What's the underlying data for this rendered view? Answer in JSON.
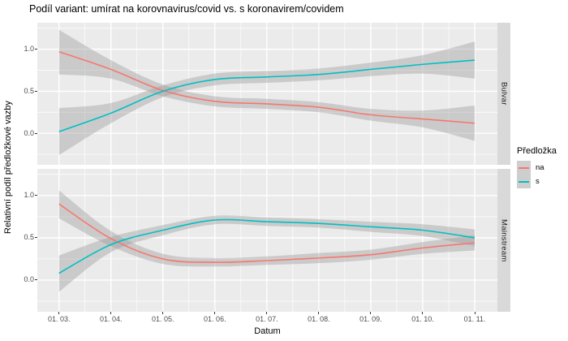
{
  "title": "Podíl variant: umírat na korovnavirus/covid vs. s koronavirem/covidem",
  "axes": {
    "x_title": "Datum",
    "y_title": "Relativní podíl předložkové vazby",
    "x_tick_labels": [
      "01. 03.",
      "01. 04.",
      "01. 05.",
      "01. 06.",
      "01. 07.",
      "01. 08.",
      "01. 09.",
      "01. 10.",
      "01. 11."
    ],
    "y_tick_labels": [
      "1.0",
      "0.5",
      "0.0"
    ],
    "y_tick_values": [
      1.0,
      0.5,
      0.0
    ]
  },
  "legend": {
    "title": "Předložka",
    "items": [
      {
        "label": "na",
        "color": "#F8766D"
      },
      {
        "label": "s",
        "color": "#00BFC4"
      }
    ]
  },
  "colors": {
    "panel_background": "#EBEBEB",
    "strip_background": "#D9D9D9",
    "grid": "#FFFFFF",
    "ribbon": "#999999",
    "ribbon_opacity": 0.4,
    "na_line": "#F8766D",
    "s_line": "#00BFC4",
    "tick": "#333333",
    "tick_text": "#4D4D4D",
    "legend_key_background": "#CECECE"
  },
  "chart_data": {
    "type": "line",
    "x": [
      "01. 03.",
      "01. 04.",
      "01. 05.",
      "01. 06.",
      "01. 07.",
      "01. 08.",
      "01. 09.",
      "01. 10.",
      "01. 11."
    ],
    "ylim": [
      -0.375,
      1.315
    ],
    "y_major_gridlines": [
      0.0,
      0.5,
      1.0
    ],
    "y_minor_gridlines": [
      -0.25,
      0.25,
      0.75,
      1.25
    ],
    "grid": "on",
    "legend_position": "right",
    "facets": [
      {
        "name": "Bulvar",
        "series": [
          {
            "name": "na",
            "color": "#F8766D",
            "values": [
              0.97,
              0.76,
              0.51,
              0.38,
              0.35,
              0.31,
              0.22,
              0.17,
              0.12
            ],
            "upper": [
              1.23,
              0.87,
              0.58,
              0.44,
              0.41,
              0.37,
              0.29,
              0.27,
              0.33
            ],
            "lower": [
              0.7,
              0.65,
              0.44,
              0.32,
              0.29,
              0.25,
              0.15,
              0.07,
              -0.09
            ]
          },
          {
            "name": "s",
            "color": "#00BFC4",
            "values": [
              0.02,
              0.24,
              0.5,
              0.64,
              0.67,
              0.7,
              0.76,
              0.82,
              0.87
            ],
            "upper": [
              0.3,
              0.36,
              0.57,
              0.71,
              0.74,
              0.77,
              0.84,
              0.93,
              1.09
            ],
            "lower": [
              -0.26,
              0.12,
              0.43,
              0.57,
              0.6,
              0.63,
              0.68,
              0.71,
              0.65
            ]
          }
        ]
      },
      {
        "name": "Mainstream",
        "series": [
          {
            "name": "na",
            "color": "#F8766D",
            "values": [
              0.9,
              0.49,
              0.25,
              0.21,
              0.23,
              0.26,
              0.3,
              0.38,
              0.44
            ],
            "upper": [
              1.06,
              0.58,
              0.31,
              0.26,
              0.28,
              0.32,
              0.36,
              0.45,
              0.53
            ],
            "lower": [
              0.73,
              0.4,
              0.19,
              0.16,
              0.18,
              0.2,
              0.24,
              0.31,
              0.35
            ]
          },
          {
            "name": "s",
            "color": "#00BFC4",
            "values": [
              0.08,
              0.42,
              0.59,
              0.71,
              0.69,
              0.67,
              0.63,
              0.59,
              0.5
            ],
            "upper": [
              0.29,
              0.51,
              0.65,
              0.76,
              0.74,
              0.72,
              0.69,
              0.66,
              0.6
            ],
            "lower": [
              -0.14,
              0.33,
              0.53,
              0.66,
              0.64,
              0.62,
              0.57,
              0.52,
              0.4
            ]
          }
        ]
      }
    ]
  }
}
